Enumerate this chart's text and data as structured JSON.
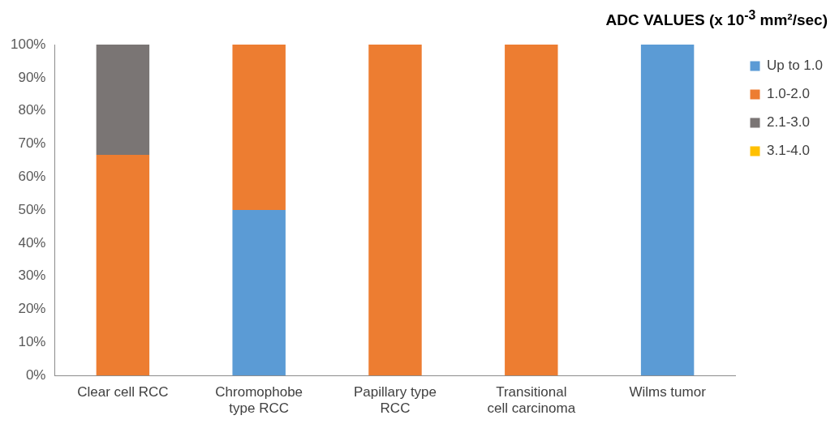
{
  "chart_data": {
    "type": "bar",
    "stacked": true,
    "title": "ADC VALUES (x 10$^{-3}$ mm²/sec)",
    "categories": [
      "Clear cell RCC",
      "Chromophobe type RCC",
      "Papillary type RCC",
      "Transitional cell carcinoma",
      "Wilms tumor"
    ],
    "series": [
      {
        "name": "Up to 1.0",
        "color": "#5b9bd5",
        "values": [
          0,
          50,
          0,
          0,
          100
        ]
      },
      {
        "name": "1.0-2.0",
        "color": "#ed7d31",
        "values": [
          66.7,
          50,
          100,
          100,
          0
        ]
      },
      {
        "name": "2.1-3.0",
        "color": "#7a7574",
        "values": [
          33.3,
          0,
          0,
          0,
          0
        ]
      },
      {
        "name": "3.1-4.0",
        "color": "#ffc000",
        "values": [
          0,
          0,
          0,
          0,
          0
        ]
      }
    ],
    "ylim": [
      0,
      100
    ],
    "yticks": [
      {
        "value": 0,
        "label": "0%"
      },
      {
        "value": 10,
        "label": "10%"
      },
      {
        "value": 20,
        "label": "20%"
      },
      {
        "value": 30,
        "label": "30%"
      },
      {
        "value": 40,
        "label": "40%"
      },
      {
        "value": 50,
        "label": "50%"
      },
      {
        "value": 60,
        "label": "60%"
      },
      {
        "value": 70,
        "label": "70%"
      },
      {
        "value": 80,
        "label": "80%"
      },
      {
        "value": 90,
        "label": "90%"
      },
      {
        "value": 100,
        "label": "100%"
      }
    ],
    "grid": false,
    "legend": "right"
  }
}
